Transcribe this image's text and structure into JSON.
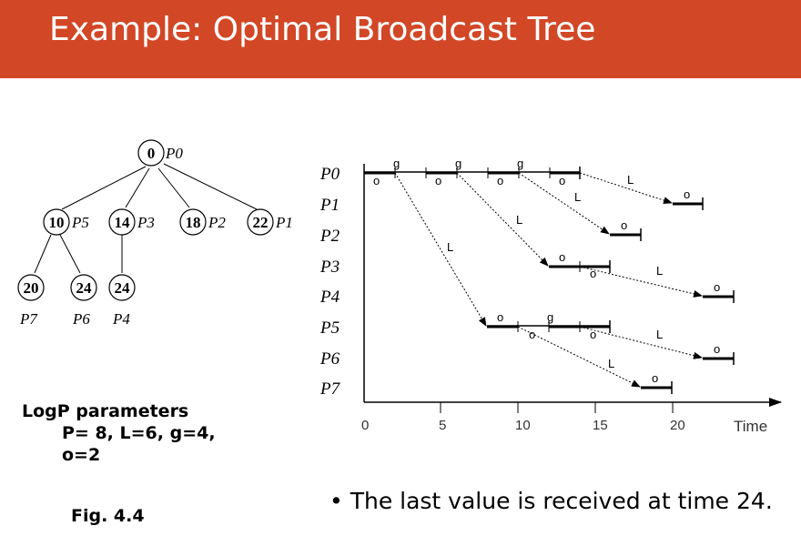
{
  "slide": {
    "title": "Example: Optimal Broadcast Tree",
    "accent_color": "#d24726",
    "params_heading": "LogP parameters",
    "params_line1": "P= 8,  L=6,  g=4,",
    "params_line2": "o=2",
    "figure_label": "Fig. 4.4",
    "bullet": "The last value is received at time 24."
  },
  "tree": {
    "nodes": [
      {
        "id": "n0",
        "value": "0",
        "proc": "P0"
      },
      {
        "id": "n1",
        "value": "10",
        "proc": "P5"
      },
      {
        "id": "n2",
        "value": "14",
        "proc": "P3"
      },
      {
        "id": "n3",
        "value": "18",
        "proc": "P2"
      },
      {
        "id": "n4",
        "value": "22",
        "proc": "P1"
      },
      {
        "id": "n5",
        "value": "20",
        "proc": "P7"
      },
      {
        "id": "n6",
        "value": "24",
        "proc": "P6"
      },
      {
        "id": "n7",
        "value": "24",
        "proc": "P4"
      }
    ]
  },
  "timeline": {
    "processors": [
      "P0",
      "P1",
      "P2",
      "P3",
      "P4",
      "P5",
      "P6",
      "P7"
    ],
    "ticks": [
      "0",
      "5",
      "10",
      "15",
      "20"
    ],
    "axis_label": "Time",
    "overhead_label": "o",
    "gap_label": "g",
    "latency_label": "L",
    "events": [
      {
        "proc": "P0",
        "start": 0,
        "end": 14,
        "receive": null,
        "sends": [
          0,
          4,
          8,
          12
        ]
      },
      {
        "proc": "P5",
        "start": 8,
        "end": 16,
        "receive": 8,
        "sends": [
          10,
          14
        ]
      },
      {
        "proc": "P3",
        "start": 12,
        "end": 16,
        "receive": 12,
        "sends": [
          14
        ]
      },
      {
        "proc": "P2",
        "start": 16,
        "end": 18,
        "receive": 16,
        "sends": []
      },
      {
        "proc": "P1",
        "start": 20,
        "end": 22,
        "receive": 20,
        "sends": []
      },
      {
        "proc": "P7",
        "start": 18,
        "end": 20,
        "receive": 18,
        "sends": []
      },
      {
        "proc": "P6",
        "start": 22,
        "end": 24,
        "receive": 22,
        "sends": []
      },
      {
        "proc": "P4",
        "start": 22,
        "end": 24,
        "receive": 22,
        "sends": []
      }
    ]
  }
}
